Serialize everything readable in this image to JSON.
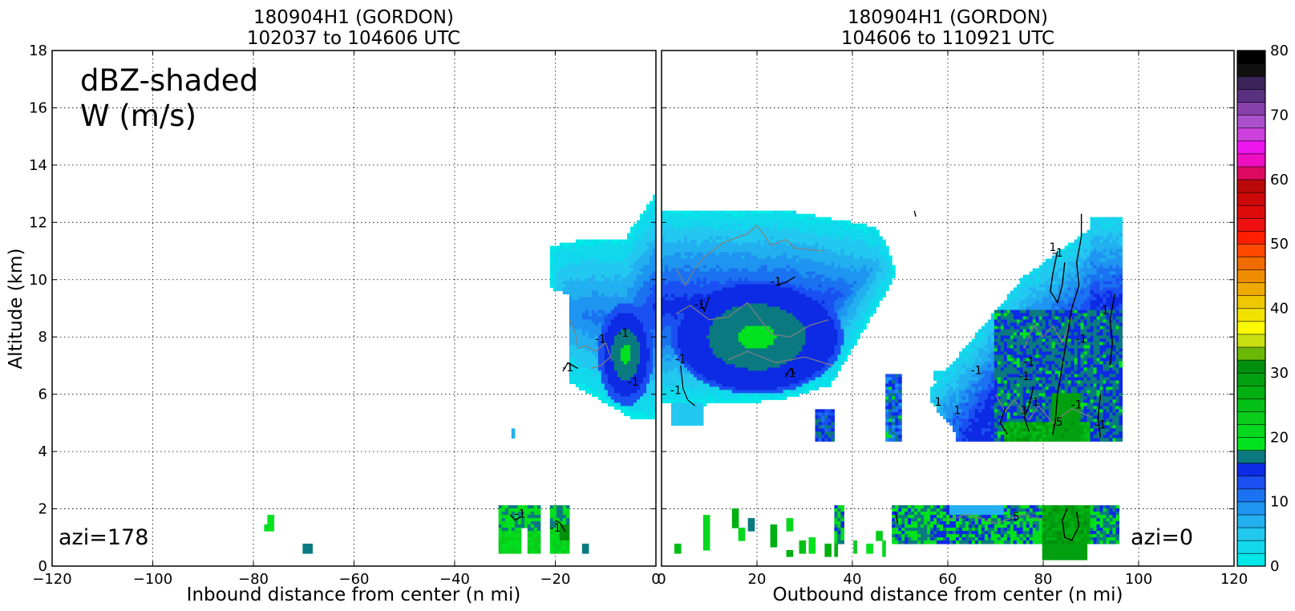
{
  "chart_data": [
    {
      "type": "heatmap",
      "panel": "left",
      "title_line1": "180904H1 (GORDON)",
      "title_line2": "102037 to 104606 UTC",
      "xlabel": "Inbound distance from center (n mi)",
      "ylabel": "Altitude (km)",
      "xlim": [
        -120,
        0
      ],
      "ylim": [
        0,
        18
      ],
      "xticks": [
        -120,
        -100,
        -80,
        -60,
        -40,
        -20,
        0
      ],
      "yticks": [
        0,
        2,
        4,
        6,
        8,
        10,
        12,
        14,
        16,
        18
      ],
      "grid": true,
      "annotation_line1": "dBZ-shaded",
      "annotation_line2": "W (m/s)",
      "azimuth_label": "azi=178",
      "contour_labels": [
        "-1",
        "-1",
        "-1",
        "-1",
        "-1",
        "-1"
      ],
      "echo_regions": [
        {
          "name": "upper-anvil",
          "x_range": [
            -20,
            0
          ],
          "y_range": [
            5.1,
            13.0
          ],
          "dbz_range": [
            0,
            25
          ]
        },
        {
          "name": "low-level-cells",
          "x_range": [
            -31,
            -13
          ],
          "y_range": [
            0.5,
            2.1
          ],
          "dbz_range": [
            15,
            38
          ]
        }
      ]
    },
    {
      "type": "heatmap",
      "panel": "right",
      "title_line1": "180904H1 (GORDON)",
      "title_line2": "104606 to 110921 UTC",
      "xlabel": "Outbound distance from center (n mi)",
      "xlim": [
        0,
        120
      ],
      "ylim": [
        0,
        18
      ],
      "xticks": [
        0,
        20,
        40,
        60,
        80,
        100,
        120
      ],
      "grid": true,
      "azimuth_label": "azi=0",
      "contour_labels": [
        "-1",
        "-1",
        "-1",
        "-1",
        "-1",
        "1",
        "1",
        "-1",
        "-1",
        "-1",
        "1",
        "-1",
        "-1",
        "-1",
        ".5",
        "-1",
        "1",
        "1",
        ".5",
        "-1"
      ],
      "echo_regions": [
        {
          "name": "stratiform-anvil",
          "x_range": [
            0,
            51
          ],
          "y_range": [
            4.9,
            12.5
          ],
          "dbz_range": [
            0,
            26
          ]
        },
        {
          "name": "outer-band",
          "x_range": [
            57,
            96
          ],
          "y_range": [
            4.4,
            12.4
          ],
          "dbz_range": [
            5,
            40
          ]
        },
        {
          "name": "low-level-rain",
          "x_range": [
            2,
            96
          ],
          "y_range": [
            0.3,
            2.2
          ],
          "dbz_range": [
            10,
            40
          ]
        }
      ]
    }
  ],
  "colorbar": {
    "vmin": 0,
    "vmax": 80,
    "step": 2.5,
    "tick_labels": [
      "0",
      "10",
      "20",
      "30",
      "40",
      "50",
      "60",
      "70",
      "80"
    ],
    "colors": [
      "#00e8e8",
      "#11d8ec",
      "#22c8f0",
      "#22b0f0",
      "#1e95f0",
      "#1a72f0",
      "#1a50f2",
      "#0d2ae4",
      "#0b7a80",
      "#00e21e",
      "#05d81e",
      "#0acc1a",
      "#04c016",
      "#00b012",
      "#00a010",
      "#00900d",
      "#6ab806",
      "#c8e010",
      "#fafa00",
      "#f2e200",
      "#eec800",
      "#eeaa00",
      "#f08c00",
      "#f06c00",
      "#ff4a00",
      "#ff1e00",
      "#ee1010",
      "#dd0a0a",
      "#cc0808",
      "#bb0808",
      "#dd0860",
      "#ee10c0",
      "#ee14ee",
      "#cc40dd",
      "#aa50cc",
      "#8840aa",
      "#5a3080",
      "#3a2458",
      "#101010",
      "#000000"
    ]
  },
  "palette": {
    "contour_dark": "#000000",
    "contour_gray": "#808080",
    "grid": "#000000"
  }
}
